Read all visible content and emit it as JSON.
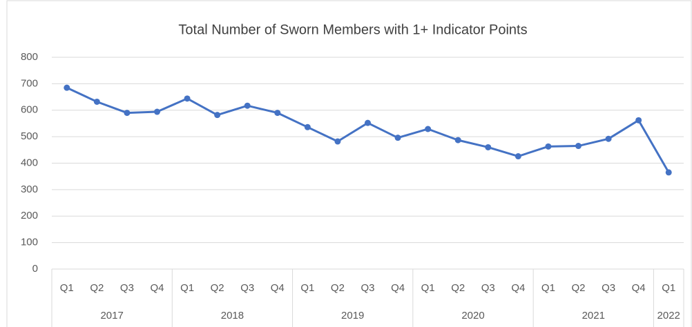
{
  "chart_data": {
    "type": "line",
    "title": "Total Number of Sworn Members with 1+ Indicator Points",
    "groups": [
      {
        "name": "2017",
        "categories": [
          "Q1",
          "Q2",
          "Q3",
          "Q4"
        ]
      },
      {
        "name": "2018",
        "categories": [
          "Q1",
          "Q2",
          "Q3",
          "Q4"
        ]
      },
      {
        "name": "2019",
        "categories": [
          "Q1",
          "Q2",
          "Q3",
          "Q4"
        ]
      },
      {
        "name": "2020",
        "categories": [
          "Q1",
          "Q2",
          "Q3",
          "Q4"
        ]
      },
      {
        "name": "2021",
        "categories": [
          "Q1",
          "Q2",
          "Q3",
          "Q4"
        ]
      },
      {
        "name": "2022",
        "categories": [
          "Q1"
        ]
      }
    ],
    "values": [
      685,
      632,
      590,
      594,
      644,
      582,
      617,
      590,
      536,
      482,
      552,
      496,
      529,
      487,
      460,
      426,
      463,
      465,
      492,
      562,
      365
    ],
    "color": "#4472c4",
    "ylim": [
      0,
      800
    ],
    "yticks": [
      0,
      100,
      200,
      300,
      400,
      500,
      600,
      700,
      800
    ],
    "grid": true
  }
}
